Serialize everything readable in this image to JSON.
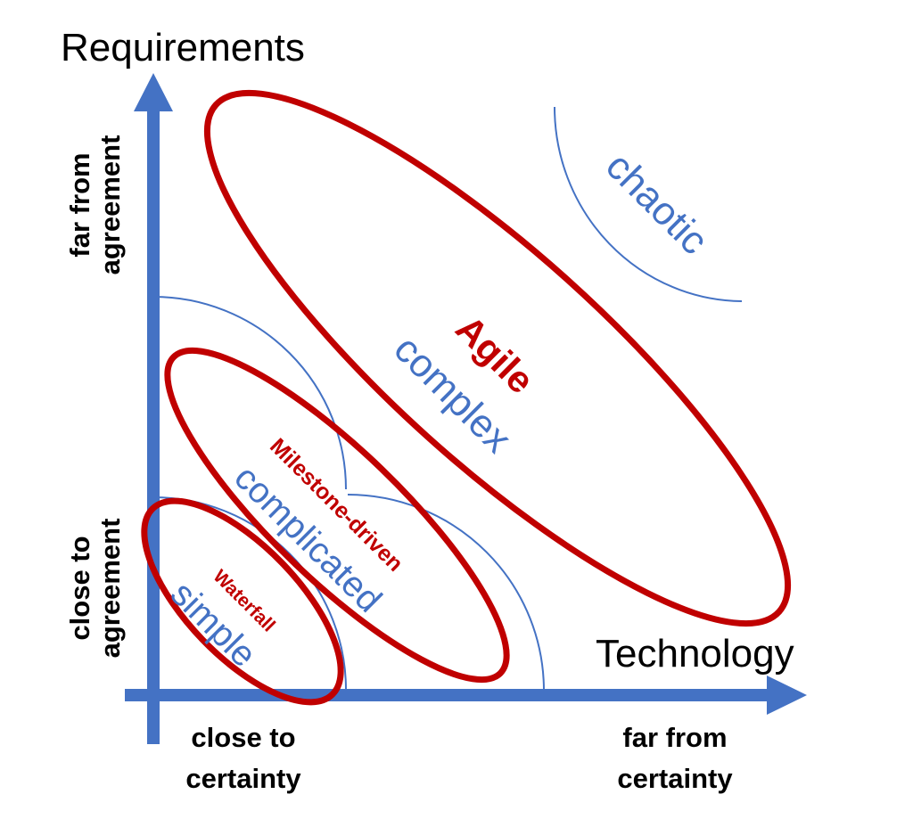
{
  "axes": {
    "vertical_title": "Requirements",
    "horizontal_title": "Technology",
    "vertical_top_label": [
      "far from",
      "agreement"
    ],
    "vertical_bottom_label": [
      "close to",
      "agreement"
    ],
    "horizontal_left_label": [
      "close to",
      "certainty"
    ],
    "horizontal_right_label": [
      "far from",
      "certainty"
    ]
  },
  "zones": {
    "simple": "simple",
    "complicated": "complicated",
    "complex": "complex",
    "chaotic": "chaotic"
  },
  "methods": {
    "waterfall": "Waterfall",
    "milestone": "Milestone-driven",
    "agile": "Agile"
  },
  "colors": {
    "axis": "#4472C4",
    "zone_lines": "#4472C4",
    "method_ellipses": "#C00000",
    "text": "#000000"
  }
}
